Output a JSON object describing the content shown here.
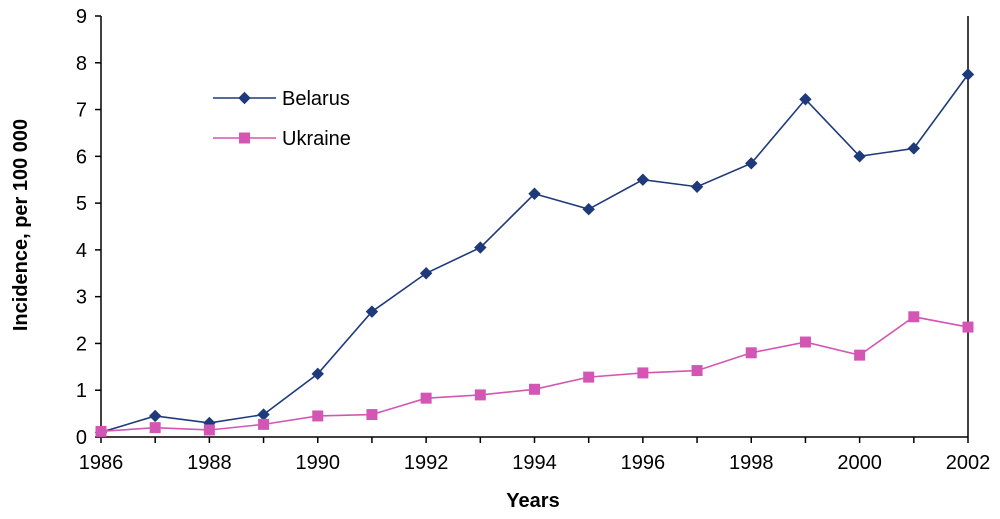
{
  "chart_data": {
    "type": "line",
    "title": "",
    "xlabel": "Years",
    "ylabel": "Incidence, per 100 000",
    "x": [
      1986,
      1987,
      1988,
      1989,
      1990,
      1991,
      1992,
      1993,
      1994,
      1995,
      1996,
      1997,
      1998,
      1999,
      2000,
      2001,
      2002
    ],
    "xlim": [
      1986,
      2002
    ],
    "ylim": [
      0,
      9
    ],
    "x_tick_labels": [
      "1986",
      "1988",
      "1990",
      "1992",
      "1994",
      "1996",
      "1998",
      "2000",
      "2002"
    ],
    "y_tick_labels": [
      "0",
      "1",
      "2",
      "3",
      "4",
      "5",
      "6",
      "7",
      "8",
      "9"
    ],
    "grid": false,
    "legend_position": "top-left",
    "series": [
      {
        "name": "Belarus",
        "color": "#1F3A7A",
        "marker": "diamond",
        "values": [
          0.1,
          0.45,
          0.3,
          0.48,
          1.35,
          2.68,
          3.5,
          4.05,
          5.2,
          4.87,
          5.5,
          5.35,
          5.85,
          7.22,
          6.0,
          6.17,
          7.75
        ]
      },
      {
        "name": "Ukraine",
        "color": "#D456B4",
        "marker": "square",
        "values": [
          0.12,
          0.2,
          0.15,
          0.27,
          0.45,
          0.48,
          0.83,
          0.9,
          1.02,
          1.28,
          1.37,
          1.42,
          1.8,
          2.03,
          1.75,
          2.57,
          2.35
        ]
      }
    ]
  }
}
